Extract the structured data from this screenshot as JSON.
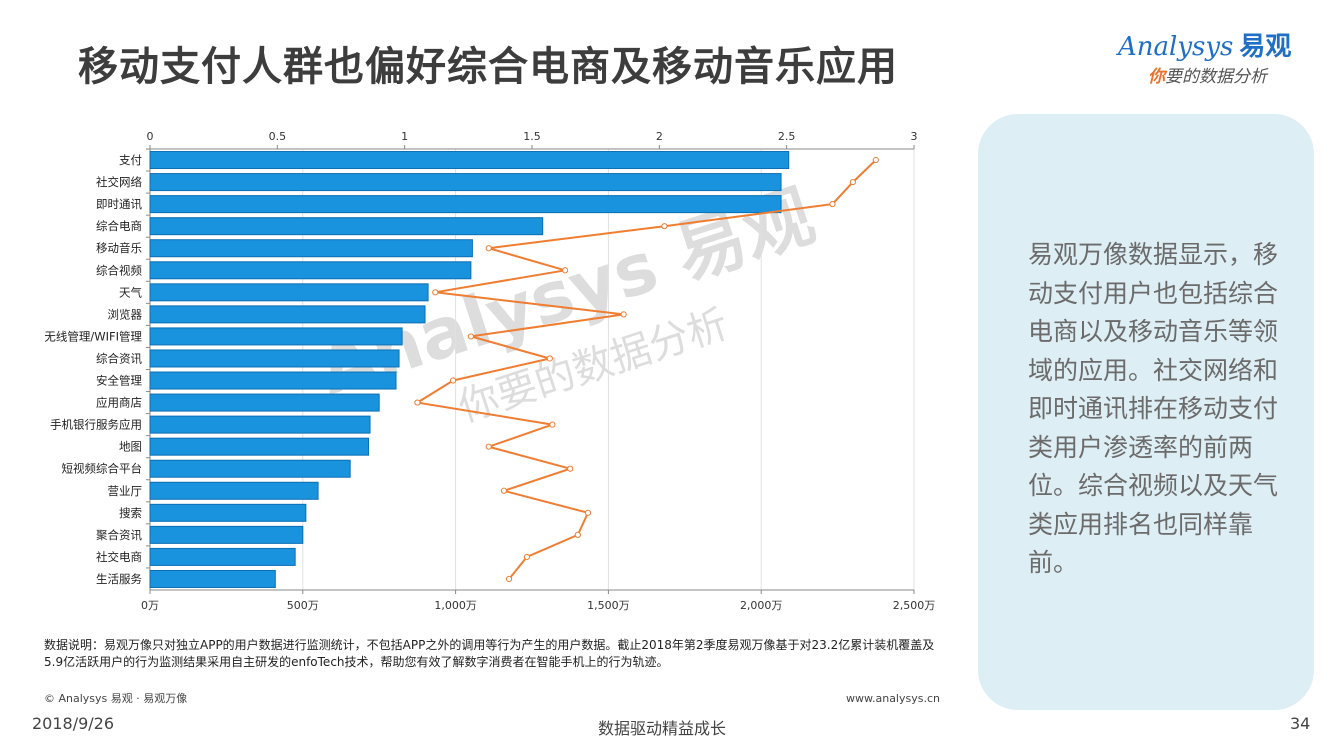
{
  "title": "移动支付人群也偏好综合电商及移动音乐应用",
  "logo": {
    "brand": "Analysys",
    "cn": "易观",
    "tagline_first": "你",
    "tagline_rest": "要的数据分析"
  },
  "chart_data": {
    "type": "bar",
    "categories": [
      "支付",
      "社交网络",
      "即时通讯",
      "综合电商",
      "移动音乐",
      "综合视频",
      "天气",
      "浏览器",
      "无线管理/WIFI管理",
      "综合资讯",
      "安全管理",
      "应用商店",
      "手机银行服务应用",
      "地图",
      "短视频综合平台",
      "营业厅",
      "搜索",
      "聚合资讯",
      "社交电商",
      "生活服务"
    ],
    "series": [
      {
        "values": [
          2090,
          2065,
          2065,
          1285,
          1055,
          1050,
          910,
          900,
          825,
          815,
          805,
          750,
          720,
          715,
          655,
          550,
          510,
          500,
          475,
          410
        ]
      },
      {
        "values": [
          2.85,
          2.76,
          2.68,
          2.02,
          1.33,
          1.63,
          1.12,
          1.86,
          1.26,
          1.57,
          1.19,
          1.05,
          1.58,
          1.33,
          1.65,
          1.39,
          1.72,
          1.68,
          1.48,
          1.41
        ]
      }
    ],
    "x_ticks_bottom": [
      "0万",
      "500万",
      "1,000万",
      "1,500万",
      "2,000万",
      "2,500万"
    ],
    "x_ticks_top": [
      "0",
      "0.5",
      "1",
      "1.5",
      "2",
      "2.5",
      "3"
    ],
    "xlim_bottom": [
      0,
      2500
    ],
    "xlim_top": [
      0,
      3
    ],
    "colors": {
      "bar": "#1a93de",
      "bar_edge": "#0b6fb5",
      "line": "#ef7d32"
    },
    "grid": true
  },
  "side_text": "易观万像数据显示，移动支付用户也包括综合电商以及移动音乐等领域的应用。社交网络和即时通讯排在移动支付类用户渗透率的前两位。综合视频以及天气类应用排名也同样靠前。",
  "watermark": {
    "line1": "Analysys 易观",
    "line2": "你要的数据分析"
  },
  "note": "数据说明：易观万像只对独立APP的用户数据进行监测统计，不包括APP之外的调用等行为产生的用户数据。截止2018年第2季度易观万像基于对23.2亿累计装机覆盖及5.9亿活跃用户的行为监测结果采用自主研发的enfoTech技术，帮助您有效了解数字消费者在智能手机上的行为轨迹。",
  "copyright": "© Analysys 易观 · 易观万像",
  "website": "www.analysys.cn",
  "date": "2018/9/26",
  "slogan": "数据驱动精益成长",
  "page_number": "34"
}
